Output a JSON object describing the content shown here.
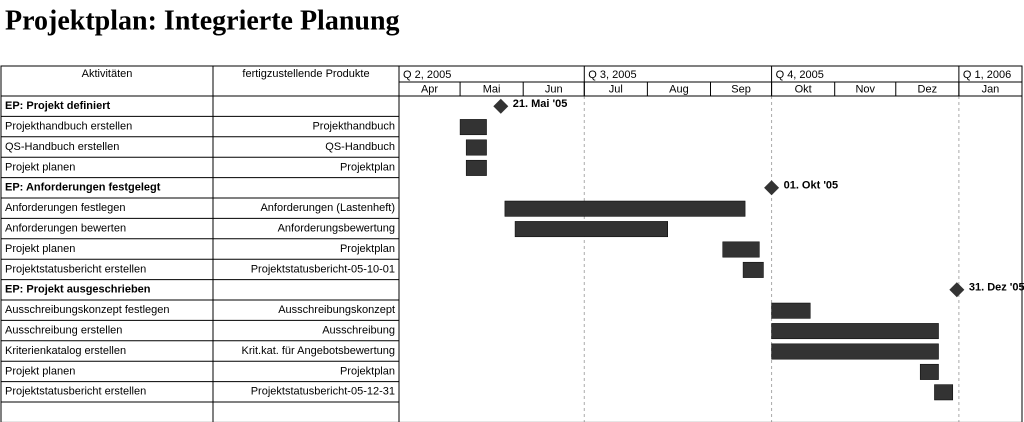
{
  "chart_data": {
    "type": "gantt",
    "title": "Projektplan: Integrierte Planung",
    "columns": [
      "Aktivitäten",
      "fertigzustellende Produkte"
    ],
    "xlim": [
      "2005-04-01",
      "2006-02-01"
    ],
    "quarters": [
      {
        "label": "Q 2, 2005",
        "start": "2005-04-01"
      },
      {
        "label": "Q 3, 2005",
        "start": "2005-07-01"
      },
      {
        "label": "Q 4, 2005",
        "start": "2005-10-01"
      },
      {
        "label": "Q 1, 2006",
        "start": "2006-01-01"
      }
    ],
    "months": [
      {
        "label": "Apr",
        "start": "2005-04-01"
      },
      {
        "label": "Mai",
        "start": "2005-05-01"
      },
      {
        "label": "Jun",
        "start": "2005-06-01"
      },
      {
        "label": "Jul",
        "start": "2005-07-01"
      },
      {
        "label": "Aug",
        "start": "2005-08-01"
      },
      {
        "label": "Sep",
        "start": "2005-09-01"
      },
      {
        "label": "Okt",
        "start": "2005-10-01"
      },
      {
        "label": "Nov",
        "start": "2005-11-01"
      },
      {
        "label": "Dez",
        "start": "2005-12-01"
      },
      {
        "label": "Jan",
        "start": "2006-01-01"
      }
    ],
    "color": "#333333",
    "rows": [
      {
        "activity": "EP: Projekt definiert",
        "milestone": "2005-05-21",
        "milestone_label": "21. Mai '05"
      },
      {
        "activity": "Projekthandbuch erstellen",
        "product": "Projekthandbuch",
        "start": "2005-05-01",
        "end": "2005-05-14"
      },
      {
        "activity": "QS-Handbuch erstellen",
        "product": "QS-Handbuch",
        "start": "2005-05-04",
        "end": "2005-05-14"
      },
      {
        "activity": "Projekt planen",
        "product": "Projektplan",
        "start": "2005-05-04",
        "end": "2005-05-14"
      },
      {
        "activity": "EP: Anforderungen festgelegt",
        "milestone": "2005-10-01",
        "milestone_label": "01. Okt '05"
      },
      {
        "activity": "Anforderungen festlegen",
        "product": "Anforderungen (Lastenheft)",
        "start": "2005-05-23",
        "end": "2005-09-18"
      },
      {
        "activity": "Anforderungen bewerten",
        "product": "Anforderungsbewertung",
        "start": "2005-05-28",
        "end": "2005-08-11"
      },
      {
        "activity": "Projekt planen",
        "product": "Projektplan",
        "start": "2005-09-07",
        "end": "2005-09-25"
      },
      {
        "activity": "Projektstatusbericht erstellen",
        "product": "Projektstatusbericht-05-10-01",
        "start": "2005-09-17",
        "end": "2005-09-27"
      },
      {
        "activity": "EP: Projekt ausgeschrieben",
        "milestone": "2005-12-31",
        "milestone_label": "31. Dez '05"
      },
      {
        "activity": "Ausschreibungskonzept festlegen",
        "product": "Ausschreibungskonzept",
        "start": "2005-10-01",
        "end": "2005-10-20"
      },
      {
        "activity": "Ausschreibung erstellen",
        "product": "Ausschreibung",
        "start": "2005-10-01",
        "end": "2005-12-22"
      },
      {
        "activity": "Kriterienkatalog erstellen",
        "product": "Krit.kat. für Angebotsbewertung",
        "start": "2005-10-01",
        "end": "2005-12-22"
      },
      {
        "activity": "Projekt planen",
        "product": "Projektplan",
        "start": "2005-12-13",
        "end": "2005-12-22"
      },
      {
        "activity": "Projektstatusbericht erstellen",
        "product": "Projektstatusbericht-05-12-31",
        "start": "2005-12-20",
        "end": "2005-12-29"
      }
    ]
  }
}
